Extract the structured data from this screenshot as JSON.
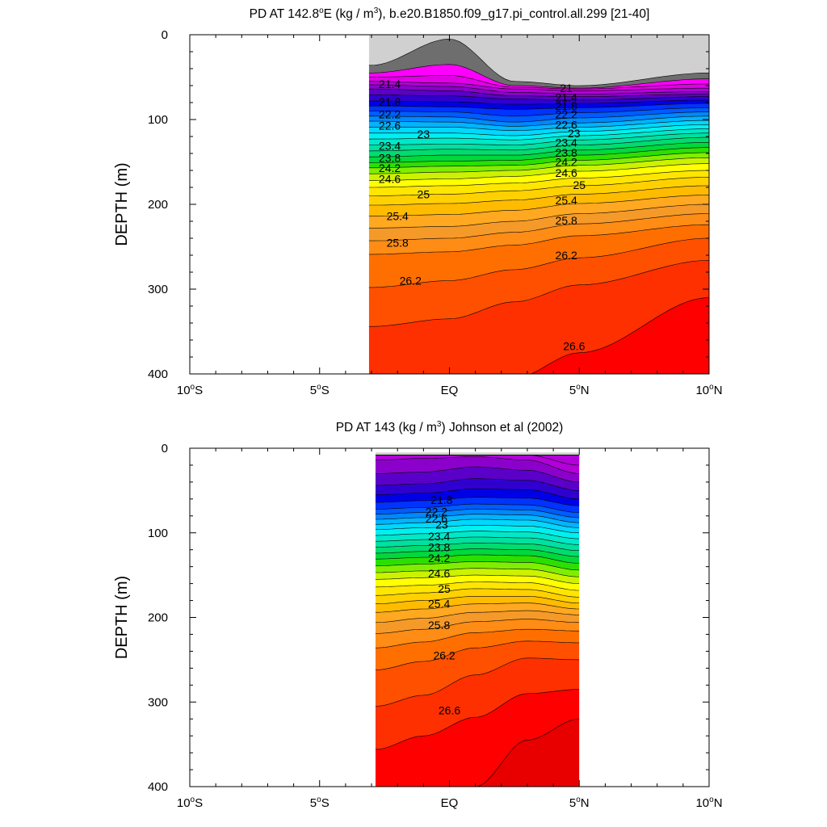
{
  "colors": {
    "levels": [
      "#ffffff",
      "#d0d0d0",
      "#a8a8a8",
      "#6e6e6e",
      "#ff00ff",
      "#e000e6",
      "#b300d9",
      "#8c00cc",
      "#5a00c8",
      "#3000d0",
      "#0000e6",
      "#0033ff",
      "#005cff",
      "#0088ff",
      "#00b4ff",
      "#00d8ff",
      "#00f0f0",
      "#00e8c8",
      "#00e0a0",
      "#00dc6e",
      "#00d83c",
      "#2be000",
      "#80ee00",
      "#ccf200",
      "#ffff00",
      "#ffe600",
      "#ffd100",
      "#ffbb00",
      "#ffa820",
      "#f59a28",
      "#ff8c14",
      "#ff6f00",
      "#ff5000",
      "#ff3000",
      "#ff0000",
      "#e80000",
      "#d00000",
      "#c00000"
    ],
    "land": "#6e6e6e"
  },
  "chart_data": [
    {
      "type": "contour",
      "title_parts": [
        "PD AT 142.8",
        "o",
        "E (kg / m",
        "3",
        "), b.e20.B1850.f09_g17.pi_control.all.299 [21-40]"
      ],
      "ylabel": "DEPTH (m)",
      "x_range": [
        -10,
        10
      ],
      "y_range": [
        400,
        0
      ],
      "x_ticks": [
        {
          "v": -10,
          "label": "10",
          "sup": "o",
          "suffix": "S"
        },
        {
          "v": -5,
          "label": "5",
          "sup": "o",
          "suffix": "S"
        },
        {
          "v": 0,
          "label": "EQ",
          "sup": "",
          "suffix": ""
        },
        {
          "v": 5,
          "label": "5",
          "sup": "o",
          "suffix": "N"
        },
        {
          "v": 10,
          "label": "10",
          "sup": "o",
          "suffix": "N"
        }
      ],
      "y_ticks": [
        0,
        100,
        200,
        300,
        400
      ],
      "data_x_range": [
        -3.1,
        10
      ],
      "contour_interval": 0.2,
      "base_level": 20.4,
      "isopycnals_x": [
        -3,
        0,
        2.5,
        5,
        10
      ],
      "isopycnals": [
        {
          "sigma": 20.4,
          "depth": [
            36,
            5,
            55,
            60,
            45
          ]
        },
        {
          "sigma": 20.6,
          "depth": [
            45,
            35,
            60,
            63,
            52
          ]
        },
        {
          "sigma": 20.8,
          "depth": [
            50,
            48,
            62,
            64,
            58
          ]
        },
        {
          "sigma": 21.0,
          "depth": [
            55,
            57,
            64,
            66,
            63
          ]
        },
        {
          "sigma": 21.2,
          "depth": [
            59,
            61,
            68,
            70,
            67
          ]
        },
        {
          "sigma": 21.4,
          "depth": [
            64,
            66,
            72,
            73,
            70
          ]
        },
        {
          "sigma": 21.6,
          "depth": [
            71,
            72,
            76,
            77,
            73
          ]
        },
        {
          "sigma": 21.8,
          "depth": [
            78,
            79,
            82,
            81,
            77
          ]
        },
        {
          "sigma": 22.0,
          "depth": [
            84,
            85,
            88,
            86,
            81
          ]
        },
        {
          "sigma": 22.2,
          "depth": [
            90,
            91,
            96,
            92,
            86
          ]
        },
        {
          "sigma": 22.4,
          "depth": [
            96,
            97,
            103,
            98,
            91
          ]
        },
        {
          "sigma": 22.6,
          "depth": [
            102,
            103,
            108,
            104,
            96
          ]
        },
        {
          "sigma": 22.8,
          "depth": [
            109,
            109,
            113,
            109,
            101
          ]
        },
        {
          "sigma": 23.0,
          "depth": [
            116,
            116,
            119,
            114,
            106
          ]
        },
        {
          "sigma": 23.2,
          "depth": [
            123,
            122,
            124,
            119,
            111
          ]
        },
        {
          "sigma": 23.4,
          "depth": [
            130,
            129,
            130,
            124,
            116
          ]
        },
        {
          "sigma": 23.6,
          "depth": [
            137,
            135,
            136,
            130,
            121
          ]
        },
        {
          "sigma": 23.8,
          "depth": [
            144,
            142,
            142,
            136,
            127
          ]
        },
        {
          "sigma": 24.0,
          "depth": [
            151,
            149,
            148,
            142,
            133
          ]
        },
        {
          "sigma": 24.2,
          "depth": [
            157,
            155,
            154,
            148,
            139
          ]
        },
        {
          "sigma": 24.4,
          "depth": [
            164,
            162,
            160,
            154,
            145
          ]
        },
        {
          "sigma": 24.6,
          "depth": [
            172,
            170,
            167,
            161,
            152
          ]
        },
        {
          "sigma": 24.8,
          "depth": [
            180,
            178,
            175,
            169,
            160
          ]
        },
        {
          "sigma": 25.0,
          "depth": [
            190,
            188,
            184,
            178,
            168
          ]
        },
        {
          "sigma": 25.2,
          "depth": [
            201,
            199,
            195,
            188,
            178
          ]
        },
        {
          "sigma": 25.4,
          "depth": [
            214,
            212,
            207,
            199,
            189
          ]
        },
        {
          "sigma": 25.6,
          "depth": [
            228,
            226,
            220,
            211,
            200
          ]
        },
        {
          "sigma": 25.8,
          "depth": [
            243,
            240,
            233,
            223,
            211
          ]
        },
        {
          "sigma": 26.0,
          "depth": [
            259,
            256,
            248,
            237,
            224
          ]
        },
        {
          "sigma": 26.2,
          "depth": [
            298,
            290,
            277,
            263,
            240
          ]
        },
        {
          "sigma": 26.4,
          "depth": [
            344,
            335,
            315,
            295,
            266
          ]
        },
        {
          "sigma": 26.6,
          "depth": [
            420,
            420,
            405,
            375,
            310
          ]
        },
        {
          "sigma": 26.8,
          "depth": [
            430,
            430,
            430,
            430,
            430
          ]
        }
      ],
      "contour_labels": [
        {
          "text": "21.4",
          "x": -2.3,
          "y": 58
        },
        {
          "text": "21.8",
          "x": -2.3,
          "y": 79
        },
        {
          "text": "22.2",
          "x": -2.3,
          "y": 94
        },
        {
          "text": "22.6",
          "x": -2.3,
          "y": 107
        },
        {
          "text": "23",
          "x": -1.0,
          "y": 117
        },
        {
          "text": "23.4",
          "x": -2.3,
          "y": 131
        },
        {
          "text": "23.8",
          "x": -2.3,
          "y": 145
        },
        {
          "text": "24.2",
          "x": -2.3,
          "y": 157
        },
        {
          "text": "24.6",
          "x": -2.3,
          "y": 170
        },
        {
          "text": "25",
          "x": -1.0,
          "y": 188
        },
        {
          "text": "25.4",
          "x": -2.0,
          "y": 214
        },
        {
          "text": "25.8",
          "x": -2.0,
          "y": 245
        },
        {
          "text": "26.2",
          "x": -1.5,
          "y": 290
        },
        {
          "text": "21",
          "x": 4.5,
          "y": 63
        },
        {
          "text": "21.4",
          "x": 4.5,
          "y": 74
        },
        {
          "text": "21.8",
          "x": 4.5,
          "y": 84
        },
        {
          "text": "22.2",
          "x": 4.5,
          "y": 94
        },
        {
          "text": "22.6",
          "x": 4.5,
          "y": 106
        },
        {
          "text": "23",
          "x": 4.8,
          "y": 116
        },
        {
          "text": "23.4",
          "x": 4.5,
          "y": 127
        },
        {
          "text": "23.8",
          "x": 4.5,
          "y": 139
        },
        {
          "text": "24.2",
          "x": 4.5,
          "y": 150
        },
        {
          "text": "24.6",
          "x": 4.5,
          "y": 163
        },
        {
          "text": "25",
          "x": 5.0,
          "y": 177
        },
        {
          "text": "25.4",
          "x": 4.5,
          "y": 195
        },
        {
          "text": "25.8",
          "x": 4.5,
          "y": 219
        },
        {
          "text": "26.2",
          "x": 4.5,
          "y": 260
        },
        {
          "text": "26.6",
          "x": 4.8,
          "y": 367
        }
      ]
    },
    {
      "type": "contour",
      "title_parts": [
        "PD AT 143 (kg / m",
        "3",
        ") Johnson et al (2002)"
      ],
      "ylabel": "DEPTH (m)",
      "x_range": [
        -10,
        10
      ],
      "y_range": [
        400,
        0
      ],
      "x_ticks": [
        {
          "v": -10,
          "label": "10",
          "sup": "o",
          "suffix": "S"
        },
        {
          "v": -5,
          "label": "5",
          "sup": "o",
          "suffix": "S"
        },
        {
          "v": 0,
          "label": "EQ",
          "sup": "",
          "suffix": ""
        },
        {
          "v": 5,
          "label": "5",
          "sup": "o",
          "suffix": "N"
        },
        {
          "v": 10,
          "label": "10",
          "sup": "o",
          "suffix": "N"
        }
      ],
      "y_ticks": [
        0,
        100,
        200,
        300,
        400
      ],
      "data_x_range": [
        -2.85,
        5
      ],
      "data_top": 5,
      "contour_interval": 0.2,
      "base_level": 20.4,
      "isopycnals_x": [
        -2.85,
        -1,
        1,
        3,
        5
      ],
      "isopycnals": [
        {
          "sigma": 20.4,
          "depth": [
            8,
            8,
            8,
            8,
            20
          ]
        },
        {
          "sigma": 20.6,
          "depth": [
            8,
            8,
            8,
            8,
            8
          ]
        },
        {
          "sigma": 20.8,
          "depth": [
            8,
            8,
            8,
            8,
            8
          ]
        },
        {
          "sigma": 21.0,
          "depth": [
            8,
            8,
            8,
            8,
            8
          ]
        },
        {
          "sigma": 21.2,
          "depth": [
            14,
            12,
            10,
            14,
            30
          ]
        },
        {
          "sigma": 21.4,
          "depth": [
            30,
            28,
            22,
            26,
            40
          ]
        },
        {
          "sigma": 21.6,
          "depth": [
            44,
            42,
            36,
            38,
            50
          ]
        },
        {
          "sigma": 21.8,
          "depth": [
            55,
            53,
            48,
            49,
            60
          ]
        },
        {
          "sigma": 22.0,
          "depth": [
            64,
            62,
            58,
            59,
            68
          ]
        },
        {
          "sigma": 22.2,
          "depth": [
            72,
            70,
            66,
            67,
            76
          ]
        },
        {
          "sigma": 22.4,
          "depth": [
            78,
            76,
            72,
            73,
            82
          ]
        },
        {
          "sigma": 22.6,
          "depth": [
            84,
            82,
            78,
            79,
            88
          ]
        },
        {
          "sigma": 22.8,
          "depth": [
            90,
            88,
            84,
            85,
            94
          ]
        },
        {
          "sigma": 23.0,
          "depth": [
            96,
            94,
            91,
            92,
            100
          ]
        },
        {
          "sigma": 23.2,
          "depth": [
            103,
            101,
            98,
            99,
            107
          ]
        },
        {
          "sigma": 23.4,
          "depth": [
            110,
            108,
            105,
            106,
            114
          ]
        },
        {
          "sigma": 23.6,
          "depth": [
            117,
            115,
            112,
            113,
            121
          ]
        },
        {
          "sigma": 23.8,
          "depth": [
            124,
            122,
            119,
            120,
            128
          ]
        },
        {
          "sigma": 24.0,
          "depth": [
            131,
            129,
            126,
            127,
            136
          ]
        },
        {
          "sigma": 24.2,
          "depth": [
            139,
            137,
            134,
            135,
            144
          ]
        },
        {
          "sigma": 24.4,
          "depth": [
            147,
            145,
            142,
            143,
            152
          ]
        },
        {
          "sigma": 24.6,
          "depth": [
            155,
            153,
            150,
            151,
            160
          ]
        },
        {
          "sigma": 24.8,
          "depth": [
            164,
            162,
            158,
            159,
            168
          ]
        },
        {
          "sigma": 25.0,
          "depth": [
            174,
            171,
            166,
            167,
            176
          ]
        },
        {
          "sigma": 25.2,
          "depth": [
            184,
            180,
            175,
            175,
            183
          ]
        },
        {
          "sigma": 25.4,
          "depth": [
            194,
            190,
            184,
            183,
            190
          ]
        },
        {
          "sigma": 25.6,
          "depth": [
            206,
            201,
            194,
            192,
            197
          ]
        },
        {
          "sigma": 25.8,
          "depth": [
            219,
            214,
            205,
            202,
            206
          ]
        },
        {
          "sigma": 26.0,
          "depth": [
            236,
            229,
            218,
            214,
            216
          ]
        },
        {
          "sigma": 26.2,
          "depth": [
            262,
            252,
            236,
            228,
            230
          ]
        },
        {
          "sigma": 26.4,
          "depth": [
            305,
            292,
            268,
            248,
            250
          ]
        },
        {
          "sigma": 26.6,
          "depth": [
            356,
            340,
            318,
            290,
            285
          ]
        },
        {
          "sigma": 26.8,
          "depth": [
            420,
            410,
            400,
            345,
            320
          ]
        },
        {
          "sigma": 27.0,
          "depth": [
            430,
            430,
            430,
            430,
            430
          ]
        }
      ],
      "contour_labels": [
        {
          "text": "21.8",
          "x": -0.3,
          "y": 61
        },
        {
          "text": "22.2",
          "x": -0.5,
          "y": 75
        },
        {
          "text": "22.6",
          "x": -0.5,
          "y": 83
        },
        {
          "text": "23",
          "x": -0.3,
          "y": 90
        },
        {
          "text": "23.4",
          "x": -0.4,
          "y": 104
        },
        {
          "text": "23.8",
          "x": -0.4,
          "y": 117
        },
        {
          "text": "24.2",
          "x": -0.4,
          "y": 130
        },
        {
          "text": "24.6",
          "x": -0.4,
          "y": 148
        },
        {
          "text": "25",
          "x": -0.2,
          "y": 166
        },
        {
          "text": "25.4",
          "x": -0.4,
          "y": 184
        },
        {
          "text": "25.8",
          "x": -0.4,
          "y": 209
        },
        {
          "text": "26.2",
          "x": -0.2,
          "y": 245
        },
        {
          "text": "26.6",
          "x": 0.0,
          "y": 310
        }
      ]
    }
  ]
}
